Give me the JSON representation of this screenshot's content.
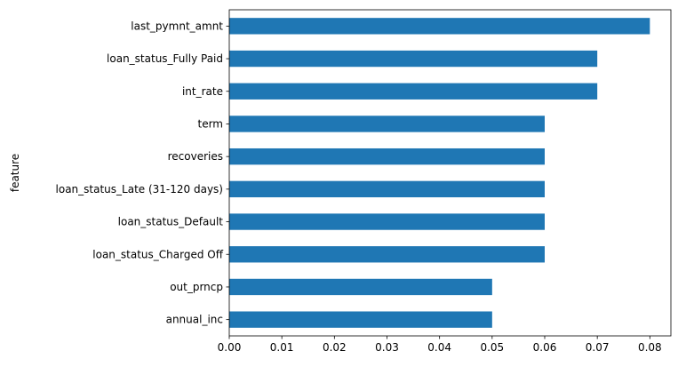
{
  "chart_data": {
    "type": "bar",
    "orientation": "horizontal",
    "categories": [
      "last_pymnt_amnt",
      "loan_status_Fully Paid",
      "int_rate",
      "term",
      "recoveries",
      "loan_status_Late (31-120 days)",
      "loan_status_Default",
      "loan_status_Charged Off",
      "out_prncp",
      "annual_inc"
    ],
    "values": [
      0.08,
      0.07,
      0.07,
      0.06,
      0.06,
      0.06,
      0.06,
      0.06,
      0.05,
      0.05
    ],
    "xticks": [
      "0.00",
      "0.01",
      "0.02",
      "0.03",
      "0.04",
      "0.05",
      "0.06",
      "0.07",
      "0.08"
    ],
    "xlim": [
      0,
      0.084
    ],
    "xlabel": "",
    "ylabel": "feature",
    "bar_color": "#1f77b4",
    "grid": false,
    "legend": false
  }
}
